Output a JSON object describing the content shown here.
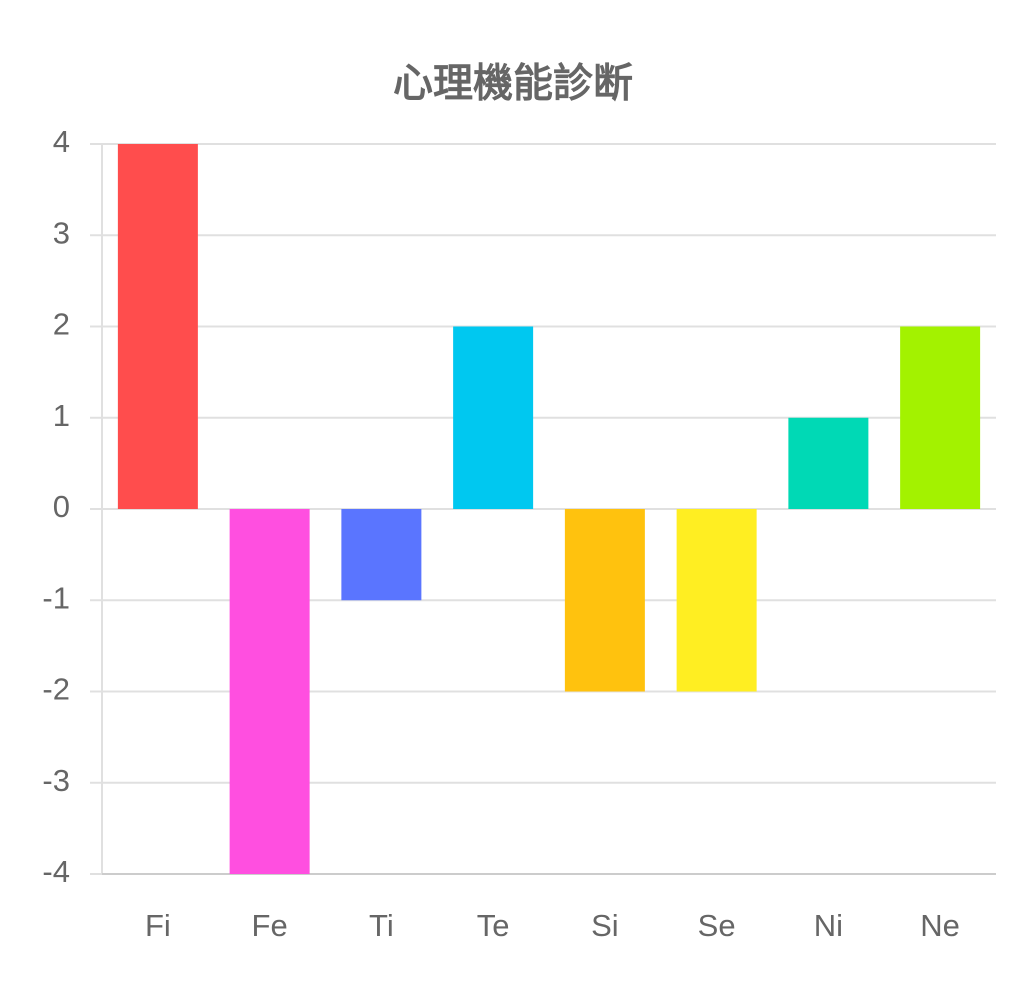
{
  "chart_data": {
    "type": "bar",
    "title": "心理機能診断",
    "categories": [
      "Fi",
      "Fe",
      "Ti",
      "Te",
      "Si",
      "Se",
      "Ni",
      "Ne"
    ],
    "values": [
      4,
      -4,
      -1,
      2,
      -2,
      -2,
      1,
      2
    ],
    "colors": [
      "#ff4d4d",
      "#ff4fe0",
      "#5a75ff",
      "#00c8f0",
      "#ffc20e",
      "#ffee22",
      "#00d9b5",
      "#a3f200"
    ],
    "ylim": [
      -4,
      4
    ],
    "yticks": [
      -4,
      -3,
      -2,
      -1,
      0,
      1,
      2,
      3,
      4
    ],
    "grid": true
  }
}
